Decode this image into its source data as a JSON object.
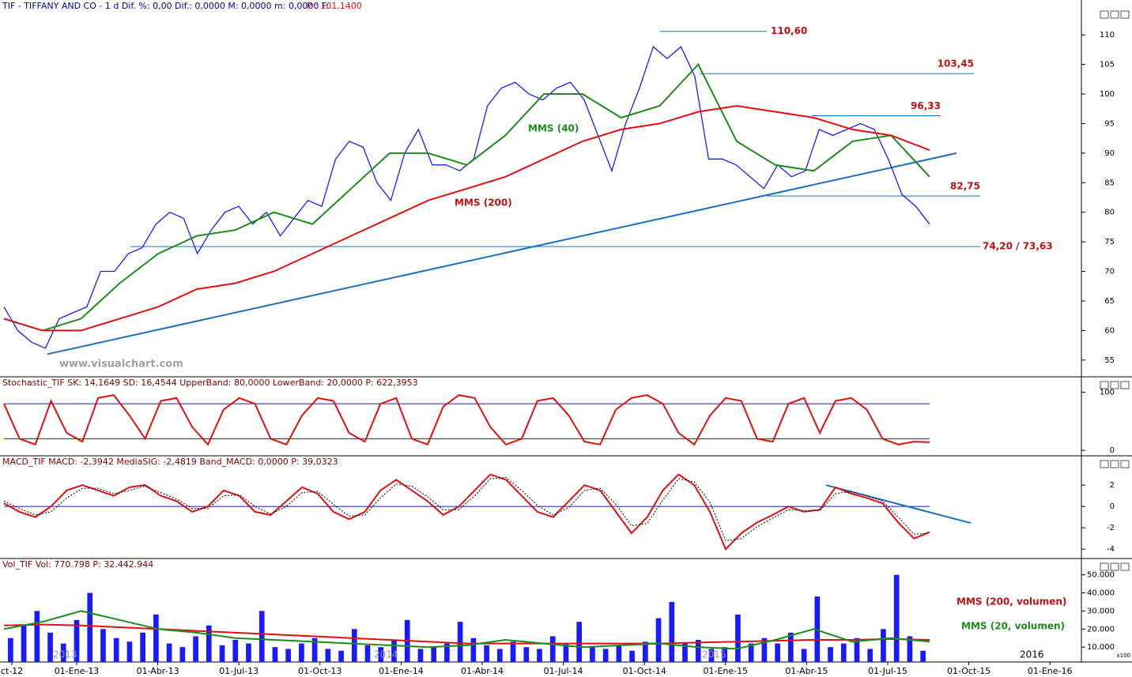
{
  "header": {
    "title": "TIF - TIFFANY AND CO - 1 d Dif. %: 0,00 Dif.: 0,0000 M: 0,0000 m: 0,0000 F:",
    "last_price": "P : 101,1400"
  },
  "watermark": "www.visualchart.com",
  "x_axis": {
    "labels": [
      "ct-12",
      "01-Ene-13",
      "01-Abr-13",
      "01-Jul-13",
      "01-Oct-13",
      "01-Ene-14",
      "01-Abr-14",
      "01-Jul-14",
      "01-Oct-14",
      "01-Ene-15",
      "01-Abr-15",
      "01-Jul-15",
      "01-Oct-15",
      "01-Ene-16"
    ],
    "years": [
      "2013",
      "2014",
      "2015",
      "2016"
    ]
  },
  "chart_data": [
    {
      "type": "line",
      "ylim": [
        52.3,
        113.9
      ],
      "yticks": [
        55,
        60,
        65,
        70,
        75,
        80,
        85,
        90,
        95,
        100,
        105,
        110
      ],
      "series": [
        {
          "color": "#1a1aff",
          "values": [
            64,
            60,
            58,
            57,
            62,
            63,
            64,
            70,
            70,
            73,
            74,
            78,
            80,
            79,
            73,
            77,
            80,
            81,
            78,
            80,
            76,
            79,
            82,
            81,
            89,
            92,
            91,
            85,
            82,
            90,
            94,
            88,
            88,
            87,
            89,
            98,
            101,
            102,
            100,
            99,
            101,
            102,
            99,
            93,
            87,
            95,
            101,
            108,
            106,
            108,
            103,
            89,
            89,
            88,
            86,
            84,
            88,
            86,
            87,
            94,
            93,
            94,
            95,
            94,
            89,
            83,
            81,
            78
          ]
        },
        {
          "name": "MMS (40)",
          "color": "#1a8c1a",
          "values": [
            62,
            60,
            62,
            68,
            73,
            76,
            77,
            80,
            78,
            84,
            90,
            90,
            88,
            93,
            100,
            100,
            96,
            98,
            105,
            92,
            88,
            87,
            92,
            93,
            86
          ]
        },
        {
          "name": "MMS (200)",
          "color": "#e01010",
          "values": [
            62,
            60,
            60,
            62,
            64,
            67,
            68,
            70,
            73,
            76,
            79,
            82,
            84,
            86,
            89,
            92,
            94,
            95,
            97,
            98,
            97,
            96,
            94,
            93,
            90.5
          ]
        }
      ],
      "levels": [
        {
          "value": 110.6,
          "label": "110,60"
        },
        {
          "value": 103.45,
          "label": "103,45"
        },
        {
          "value": 96.33,
          "label": "96,33"
        },
        {
          "value": 82.75,
          "label": "82,75"
        },
        {
          "value": 74.2,
          "label": "74,20 / 73,63"
        }
      ],
      "trendline": [
        56,
        90
      ],
      "trend_color": "#1a6fc4"
    },
    {
      "type": "line",
      "title": "Stochastic_TIF SK: 14,1649 SD: 16,4544 UpperBand: 80,0000 LowerBand: 20,0000 P: 622,3953",
      "ylim": [
        -8,
        125
      ],
      "yticks": [
        0,
        100
      ],
      "hlines": [
        80,
        20
      ],
      "series": [
        {
          "color": "#e01010",
          "values": [
            80,
            20,
            10,
            85,
            30,
            15,
            90,
            95,
            60,
            20,
            85,
            90,
            40,
            10,
            70,
            90,
            80,
            20,
            10,
            60,
            90,
            85,
            30,
            15,
            80,
            90,
            20,
            10,
            75,
            95,
            90,
            40,
            10,
            20,
            85,
            90,
            60,
            15,
            10,
            70,
            90,
            95,
            80,
            30,
            10,
            60,
            90,
            85,
            20,
            15,
            80,
            90,
            30,
            85,
            90,
            70,
            20,
            10,
            15,
            14
          ]
        }
      ]
    },
    {
      "type": "line",
      "title": "MACD_TIF MACD: -2,3942 MediaSIG: -2,4819 Band_MACD: 0,0000 P: 39,0323",
      "ylim": [
        -4.8,
        4.67
      ],
      "yticks": [
        2,
        0,
        -2,
        -4
      ],
      "hlines": [
        0
      ],
      "series": [
        {
          "color": "#e01010",
          "values": [
            0.3,
            -0.5,
            -1,
            0,
            1.5,
            2,
            1.5,
            1,
            1.8,
            2,
            1,
            0.5,
            -0.5,
            0,
            1.5,
            1,
            -0.5,
            -0.8,
            0.5,
            1.8,
            1.2,
            -0.5,
            -1.2,
            -0.5,
            1.5,
            2.5,
            1.5,
            0.5,
            -0.8,
            0,
            1.5,
            3,
            2.5,
            1,
            -0.5,
            -1,
            0.5,
            2,
            1.5,
            -0.5,
            -2.5,
            -1,
            1.5,
            3,
            2,
            -0.5,
            -4,
            -2.5,
            -1.5,
            -0.8,
            0,
            -0.5,
            -0.3,
            1.8,
            1.2,
            0.8,
            0.3,
            -1.5,
            -3,
            -2.4
          ]
        },
        {
          "color": "#000000",
          "dash": true,
          "values": [
            0.5,
            -0.2,
            -0.8,
            -0.5,
            0.8,
            1.7,
            1.7,
            1.2,
            1.5,
            1.9,
            1.3,
            0.7,
            -0.2,
            -0.2,
            1,
            1.1,
            0,
            -0.7,
            0,
            1.3,
            1.4,
            0.2,
            -0.9,
            -0.8,
            0.8,
            2.1,
            1.9,
            0.9,
            -0.3,
            -0.3,
            1,
            2.6,
            2.7,
            1.5,
            0.1,
            -0.8,
            -0.1,
            1.5,
            1.7,
            0.2,
            -1.8,
            -1.6,
            0.6,
            2.6,
            2.3,
            0.4,
            -3.2,
            -3,
            -1.9,
            -1.1,
            -0.3,
            -0.4,
            -0.4,
            1.2,
            1.4,
            1,
            0.5,
            -1,
            -2.6,
            -2.5
          ]
        }
      ],
      "trendline": [
        2,
        -1.55
      ],
      "trend_color": "#1a6fc4"
    },
    {
      "type": "bar",
      "title": "Vol_TIF Vol: 770.798 P: 32.442.944",
      "unit_label": "x100",
      "ylim": [
        1760,
        58600
      ],
      "yticks": [
        {
          "value": 10000,
          "label": "10.000"
        },
        {
          "value": 20000,
          "label": "20.000"
        },
        {
          "value": 30000,
          "label": "30.000"
        },
        {
          "value": 40000,
          "label": "40.000"
        },
        {
          "value": 50000,
          "label": "50.000"
        }
      ],
      "color": "#1a1aff",
      "values": [
        15000,
        22000,
        30000,
        18000,
        12000,
        25000,
        40000,
        20000,
        15000,
        13000,
        18000,
        28000,
        12000,
        10000,
        16000,
        22000,
        11000,
        14000,
        12000,
        30000,
        10000,
        9000,
        12000,
        15000,
        9000,
        8000,
        20000,
        11000,
        10000,
        14000,
        25000,
        9000,
        10000,
        12000,
        24000,
        15000,
        11000,
        9000,
        13000,
        10000,
        9000,
        16000,
        12000,
        24000,
        10000,
        9000,
        11000,
        8000,
        13000,
        26000,
        35000,
        12000,
        14000,
        9000,
        10000,
        28000,
        12000,
        15000,
        12000,
        18000,
        9000,
        38000,
        10000,
        12000,
        15000,
        9000,
        20000,
        50000,
        16000,
        8000
      ],
      "series": [
        {
          "name": "MMS (200, volumen)",
          "color": "#e01010",
          "values": [
            22000,
            22500,
            22000,
            21000,
            20000,
            19000,
            18000,
            17000,
            16000,
            15000,
            14000,
            13000,
            12000,
            12000,
            12000,
            12000,
            12000,
            12000,
            12500,
            13000,
            13500,
            14000,
            14000,
            14500,
            14000
          ]
        },
        {
          "name": "MMS (20, volumen)",
          "color": "#1a8c1a",
          "values": [
            20000,
            24000,
            30000,
            25000,
            20000,
            18000,
            15000,
            14000,
            13000,
            12000,
            11000,
            10000,
            11000,
            14000,
            12000,
            10000,
            11000,
            12000,
            10000,
            9000,
            14000,
            20000,
            13000,
            15000,
            13000
          ]
        }
      ]
    }
  ]
}
